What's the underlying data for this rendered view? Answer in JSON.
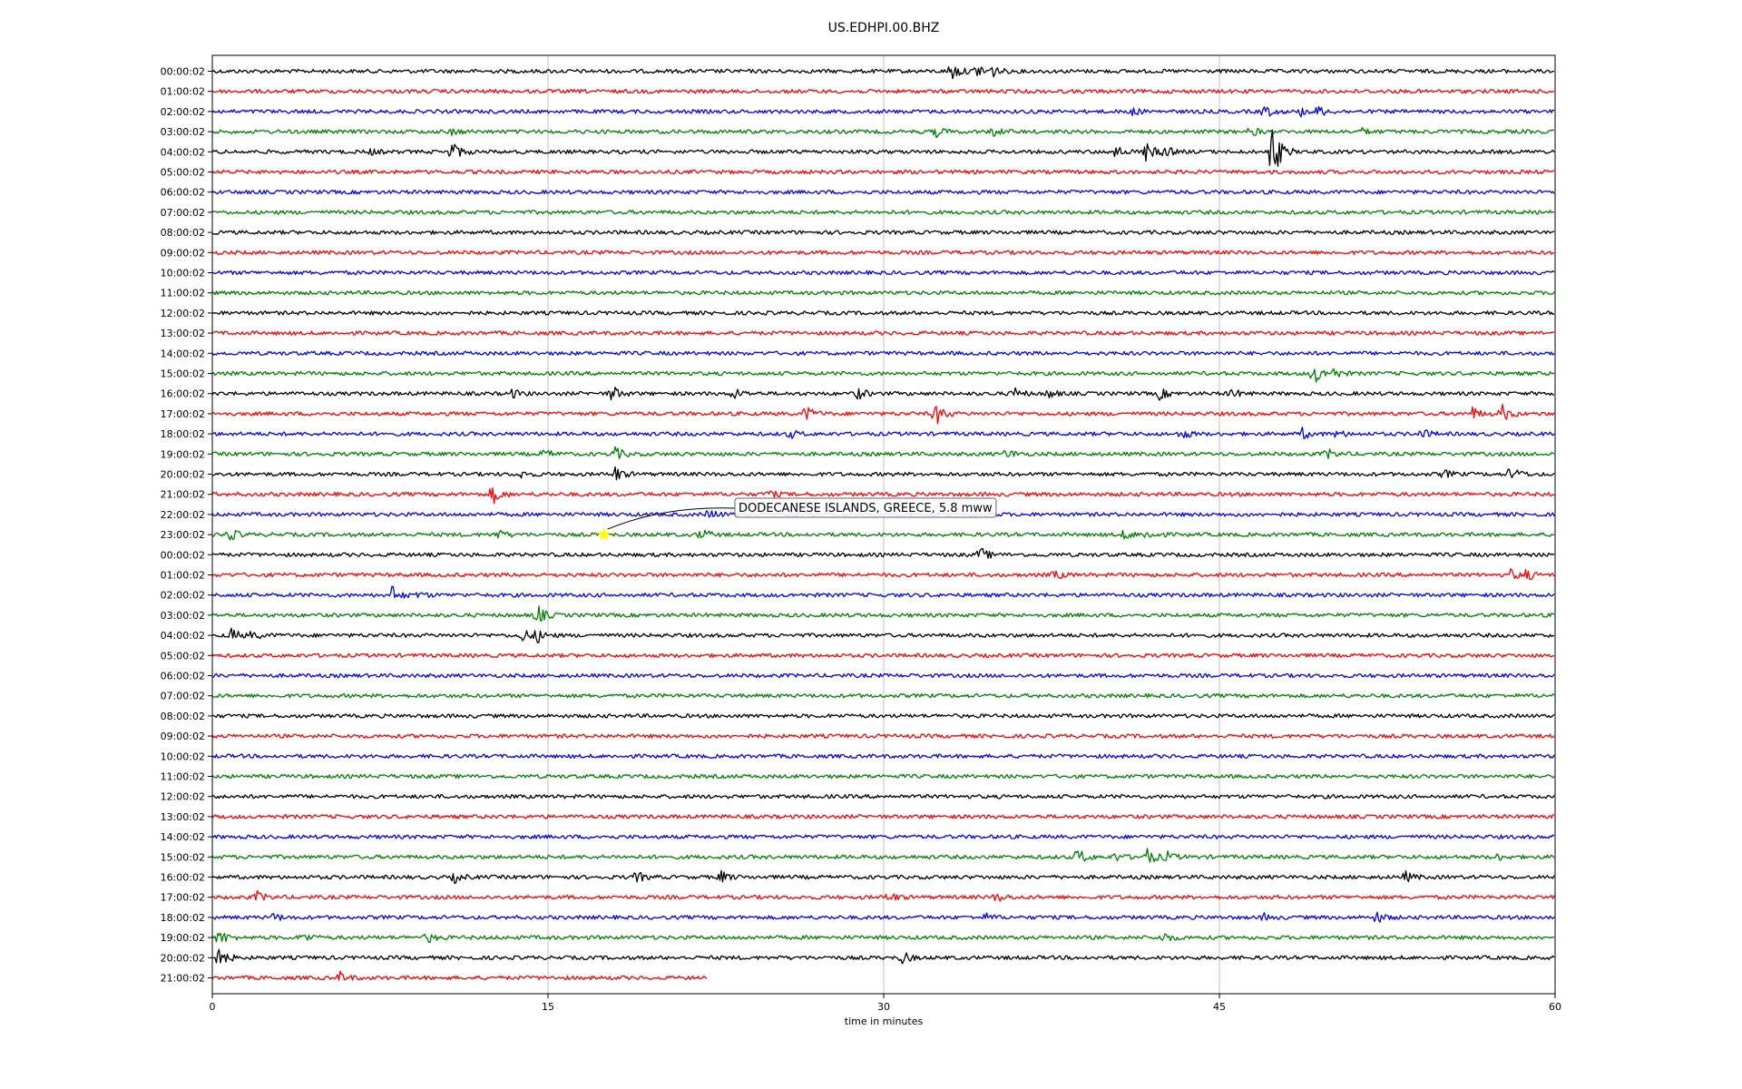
{
  "chart_data": {
    "type": "line",
    "title": "US.EDHPI.00.BHZ",
    "xlabel": "time in minutes",
    "ylabel": "",
    "xlim": [
      0,
      60
    ],
    "x_ticks": [
      "0",
      "15",
      "30",
      "45",
      "60"
    ],
    "x_tick_values": [
      0,
      15,
      30,
      45,
      60
    ],
    "grid": "vertical",
    "row_labels": [
      "00:00:02",
      "01:00:02",
      "02:00:02",
      "03:00:02",
      "04:00:02",
      "05:00:02",
      "06:00:02",
      "07:00:02",
      "08:00:02",
      "09:00:02",
      "10:00:02",
      "11:00:02",
      "12:00:02",
      "13:00:02",
      "14:00:02",
      "15:00:02",
      "16:00:02",
      "17:00:02",
      "18:00:02",
      "19:00:02",
      "20:00:02",
      "21:00:02",
      "22:00:02",
      "23:00:02",
      "00:00:02",
      "01:00:02",
      "02:00:02",
      "03:00:02",
      "04:00:02",
      "05:00:02",
      "06:00:02",
      "07:00:02",
      "08:00:02",
      "09:00:02",
      "10:00:02",
      "11:00:02",
      "12:00:02",
      "13:00:02",
      "14:00:02",
      "15:00:02",
      "16:00:02",
      "17:00:02",
      "18:00:02",
      "19:00:02",
      "20:00:02",
      "21:00:02"
    ],
    "color_cycle": [
      "#000000",
      "#ff0000",
      "#0000ff",
      "#008000"
    ],
    "last_row_end_minutes": 22.1,
    "annotation": {
      "text": "DODECANESE ISLANDS, GREECE, 5.8 mww",
      "row": 23,
      "minute": 17.5,
      "marker_color": "#ffff00"
    },
    "events": [
      {
        "row": 0,
        "minute": 33.0,
        "amp": 1.0
      },
      {
        "row": 0,
        "minute": 34.2,
        "amp": 0.9
      },
      {
        "row": 0,
        "minute": 34.8,
        "amp": 0.5
      },
      {
        "row": 2,
        "minute": 41.0,
        "amp": 0.4
      },
      {
        "row": 2,
        "minute": 47.0,
        "amp": 0.6
      },
      {
        "row": 2,
        "minute": 48.6,
        "amp": 0.4
      },
      {
        "row": 2,
        "minute": 49.4,
        "amp": 0.5
      },
      {
        "row": 3,
        "minute": 10.7,
        "amp": 0.3
      },
      {
        "row": 3,
        "minute": 32.3,
        "amp": 0.5
      },
      {
        "row": 3,
        "minute": 34.9,
        "amp": 0.4
      },
      {
        "row": 3,
        "minute": 46.4,
        "amp": 0.4
      },
      {
        "row": 3,
        "minute": 51.3,
        "amp": 0.3
      },
      {
        "row": 4,
        "minute": 7.0,
        "amp": 0.3
      },
      {
        "row": 4,
        "minute": 10.7,
        "amp": 1.0
      },
      {
        "row": 4,
        "minute": 40.3,
        "amp": 0.7
      },
      {
        "row": 4,
        "minute": 41.7,
        "amp": 1.0
      },
      {
        "row": 4,
        "minute": 42.5,
        "amp": 0.6
      },
      {
        "row": 4,
        "minute": 47.3,
        "amp": 3.5
      },
      {
        "row": 15,
        "minute": 49.2,
        "amp": 1.2
      },
      {
        "row": 15,
        "minute": 50.0,
        "amp": 0.6
      },
      {
        "row": 16,
        "minute": 13.3,
        "amp": 0.5
      },
      {
        "row": 16,
        "minute": 17.8,
        "amp": 0.9
      },
      {
        "row": 16,
        "minute": 23.3,
        "amp": 0.5
      },
      {
        "row": 16,
        "minute": 28.8,
        "amp": 0.6
      },
      {
        "row": 16,
        "minute": 35.8,
        "amp": 0.6
      },
      {
        "row": 16,
        "minute": 37.3,
        "amp": 0.5
      },
      {
        "row": 16,
        "minute": 42.3,
        "amp": 0.6
      },
      {
        "row": 16,
        "minute": 45.5,
        "amp": 0.5
      },
      {
        "row": 17,
        "minute": 26.5,
        "amp": 0.8
      },
      {
        "row": 17,
        "minute": 32.3,
        "amp": 1.2
      },
      {
        "row": 17,
        "minute": 56.3,
        "amp": 0.6
      },
      {
        "row": 17,
        "minute": 57.6,
        "amp": 0.9
      },
      {
        "row": 18,
        "minute": 25.8,
        "amp": 0.4
      },
      {
        "row": 18,
        "minute": 43.3,
        "amp": 0.5
      },
      {
        "row": 18,
        "minute": 48.7,
        "amp": 0.5
      },
      {
        "row": 18,
        "minute": 50.2,
        "amp": 0.4
      },
      {
        "row": 18,
        "minute": 54.0,
        "amp": 0.5
      },
      {
        "row": 19,
        "minute": 14.8,
        "amp": 0.5
      },
      {
        "row": 19,
        "minute": 18.0,
        "amp": 0.6
      },
      {
        "row": 19,
        "minute": 35.5,
        "amp": 0.5
      },
      {
        "row": 19,
        "minute": 49.8,
        "amp": 0.5
      },
      {
        "row": 20,
        "minute": 13.8,
        "amp": 0.3
      },
      {
        "row": 20,
        "minute": 18.0,
        "amp": 0.7
      },
      {
        "row": 20,
        "minute": 55.0,
        "amp": 0.4
      },
      {
        "row": 20,
        "minute": 58.0,
        "amp": 0.8
      },
      {
        "row": 21,
        "minute": 12.5,
        "amp": 1.0
      },
      {
        "row": 21,
        "minute": 24.8,
        "amp": 0.4
      },
      {
        "row": 22,
        "minute": 22.2,
        "amp": 0.5
      },
      {
        "row": 22,
        "minute": 25.8,
        "amp": 0.6
      },
      {
        "row": 23,
        "minute": 0.7,
        "amp": 0.7
      },
      {
        "row": 23,
        "minute": 12.7,
        "amp": 0.5
      },
      {
        "row": 23,
        "minute": 21.8,
        "amp": 0.6
      },
      {
        "row": 23,
        "minute": 40.7,
        "amp": 0.6
      },
      {
        "row": 23,
        "minute": 41.8,
        "amp": 0.5
      },
      {
        "row": 24,
        "minute": 34.3,
        "amp": 0.7
      },
      {
        "row": 25,
        "minute": 37.6,
        "amp": 0.5
      },
      {
        "row": 25,
        "minute": 58.0,
        "amp": 0.5
      },
      {
        "row": 25,
        "minute": 58.6,
        "amp": 0.6
      },
      {
        "row": 26,
        "minute": 8.0,
        "amp": 0.9
      },
      {
        "row": 26,
        "minute": 9.2,
        "amp": 0.3
      },
      {
        "row": 27,
        "minute": 14.5,
        "amp": 1.0
      },
      {
        "row": 28,
        "minute": 0.8,
        "amp": 0.7
      },
      {
        "row": 28,
        "minute": 1.8,
        "amp": 0.4
      },
      {
        "row": 28,
        "minute": 13.8,
        "amp": 0.7
      },
      {
        "row": 28,
        "minute": 14.5,
        "amp": 0.6
      },
      {
        "row": 39,
        "minute": 38.6,
        "amp": 1.0
      },
      {
        "row": 39,
        "minute": 40.3,
        "amp": 0.4
      },
      {
        "row": 39,
        "minute": 41.7,
        "amp": 1.0
      },
      {
        "row": 39,
        "minute": 42.6,
        "amp": 0.5
      },
      {
        "row": 39,
        "minute": 57.3,
        "amp": 0.4
      },
      {
        "row": 40,
        "minute": 10.8,
        "amp": 0.5
      },
      {
        "row": 40,
        "minute": 18.9,
        "amp": 0.6
      },
      {
        "row": 40,
        "minute": 22.7,
        "amp": 0.6
      },
      {
        "row": 40,
        "minute": 53.3,
        "amp": 0.5
      },
      {
        "row": 41,
        "minute": 2.0,
        "amp": 0.5
      },
      {
        "row": 41,
        "minute": 30.2,
        "amp": 0.5
      },
      {
        "row": 41,
        "minute": 35.0,
        "amp": 0.5
      },
      {
        "row": 42,
        "minute": 2.7,
        "amp": 0.4
      },
      {
        "row": 42,
        "minute": 34.6,
        "amp": 0.3
      },
      {
        "row": 42,
        "minute": 47.0,
        "amp": 0.3
      },
      {
        "row": 42,
        "minute": 52.0,
        "amp": 0.6
      },
      {
        "row": 43,
        "minute": 0.3,
        "amp": 0.8
      },
      {
        "row": 43,
        "minute": 4.0,
        "amp": 0.5
      },
      {
        "row": 43,
        "minute": 9.6,
        "amp": 0.5
      },
      {
        "row": 43,
        "minute": 42.5,
        "amp": 0.5
      },
      {
        "row": 44,
        "minute": 0.3,
        "amp": 1.0
      },
      {
        "row": 44,
        "minute": 30.8,
        "amp": 0.6
      },
      {
        "row": 45,
        "minute": 5.7,
        "amp": 0.5
      }
    ]
  }
}
